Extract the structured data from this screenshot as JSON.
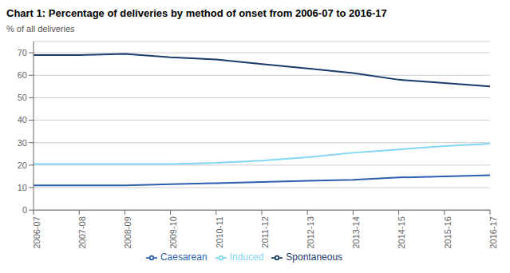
{
  "chart_data": {
    "type": "line",
    "title": "Chart 1: Percentage of deliveries by method of onset from 2006-07 to 2016-17",
    "ylabel": "% of all deliveries",
    "categories": [
      "2006-07",
      "2007-08",
      "2008-09",
      "2009-10",
      "2010-11",
      "2011-12",
      "2012-13",
      "2013-14",
      "2014-15",
      "2015-16",
      "2016-17"
    ],
    "series": [
      {
        "name": "Spontaneous",
        "color": "#1a3a6b",
        "values": [
          69,
          69,
          69.5,
          68,
          67,
          65,
          63,
          61,
          58,
          56.5,
          55
        ]
      },
      {
        "name": "Induced",
        "color": "#7fd7f5",
        "values": [
          20.5,
          20.5,
          20.5,
          20.5,
          21,
          22,
          23.5,
          25.5,
          27,
          28.5,
          29.5
        ]
      },
      {
        "name": "Caesarean",
        "color": "#2b5fad",
        "values": [
          11,
          11,
          11,
          11.5,
          12,
          12.5,
          13,
          13.5,
          14.5,
          15,
          15.5
        ]
      }
    ],
    "ylim": [
      0,
      75
    ],
    "yticks": [
      0,
      10,
      20,
      30,
      40,
      50,
      60,
      70
    ],
    "grid": true,
    "legend": "bottom"
  }
}
